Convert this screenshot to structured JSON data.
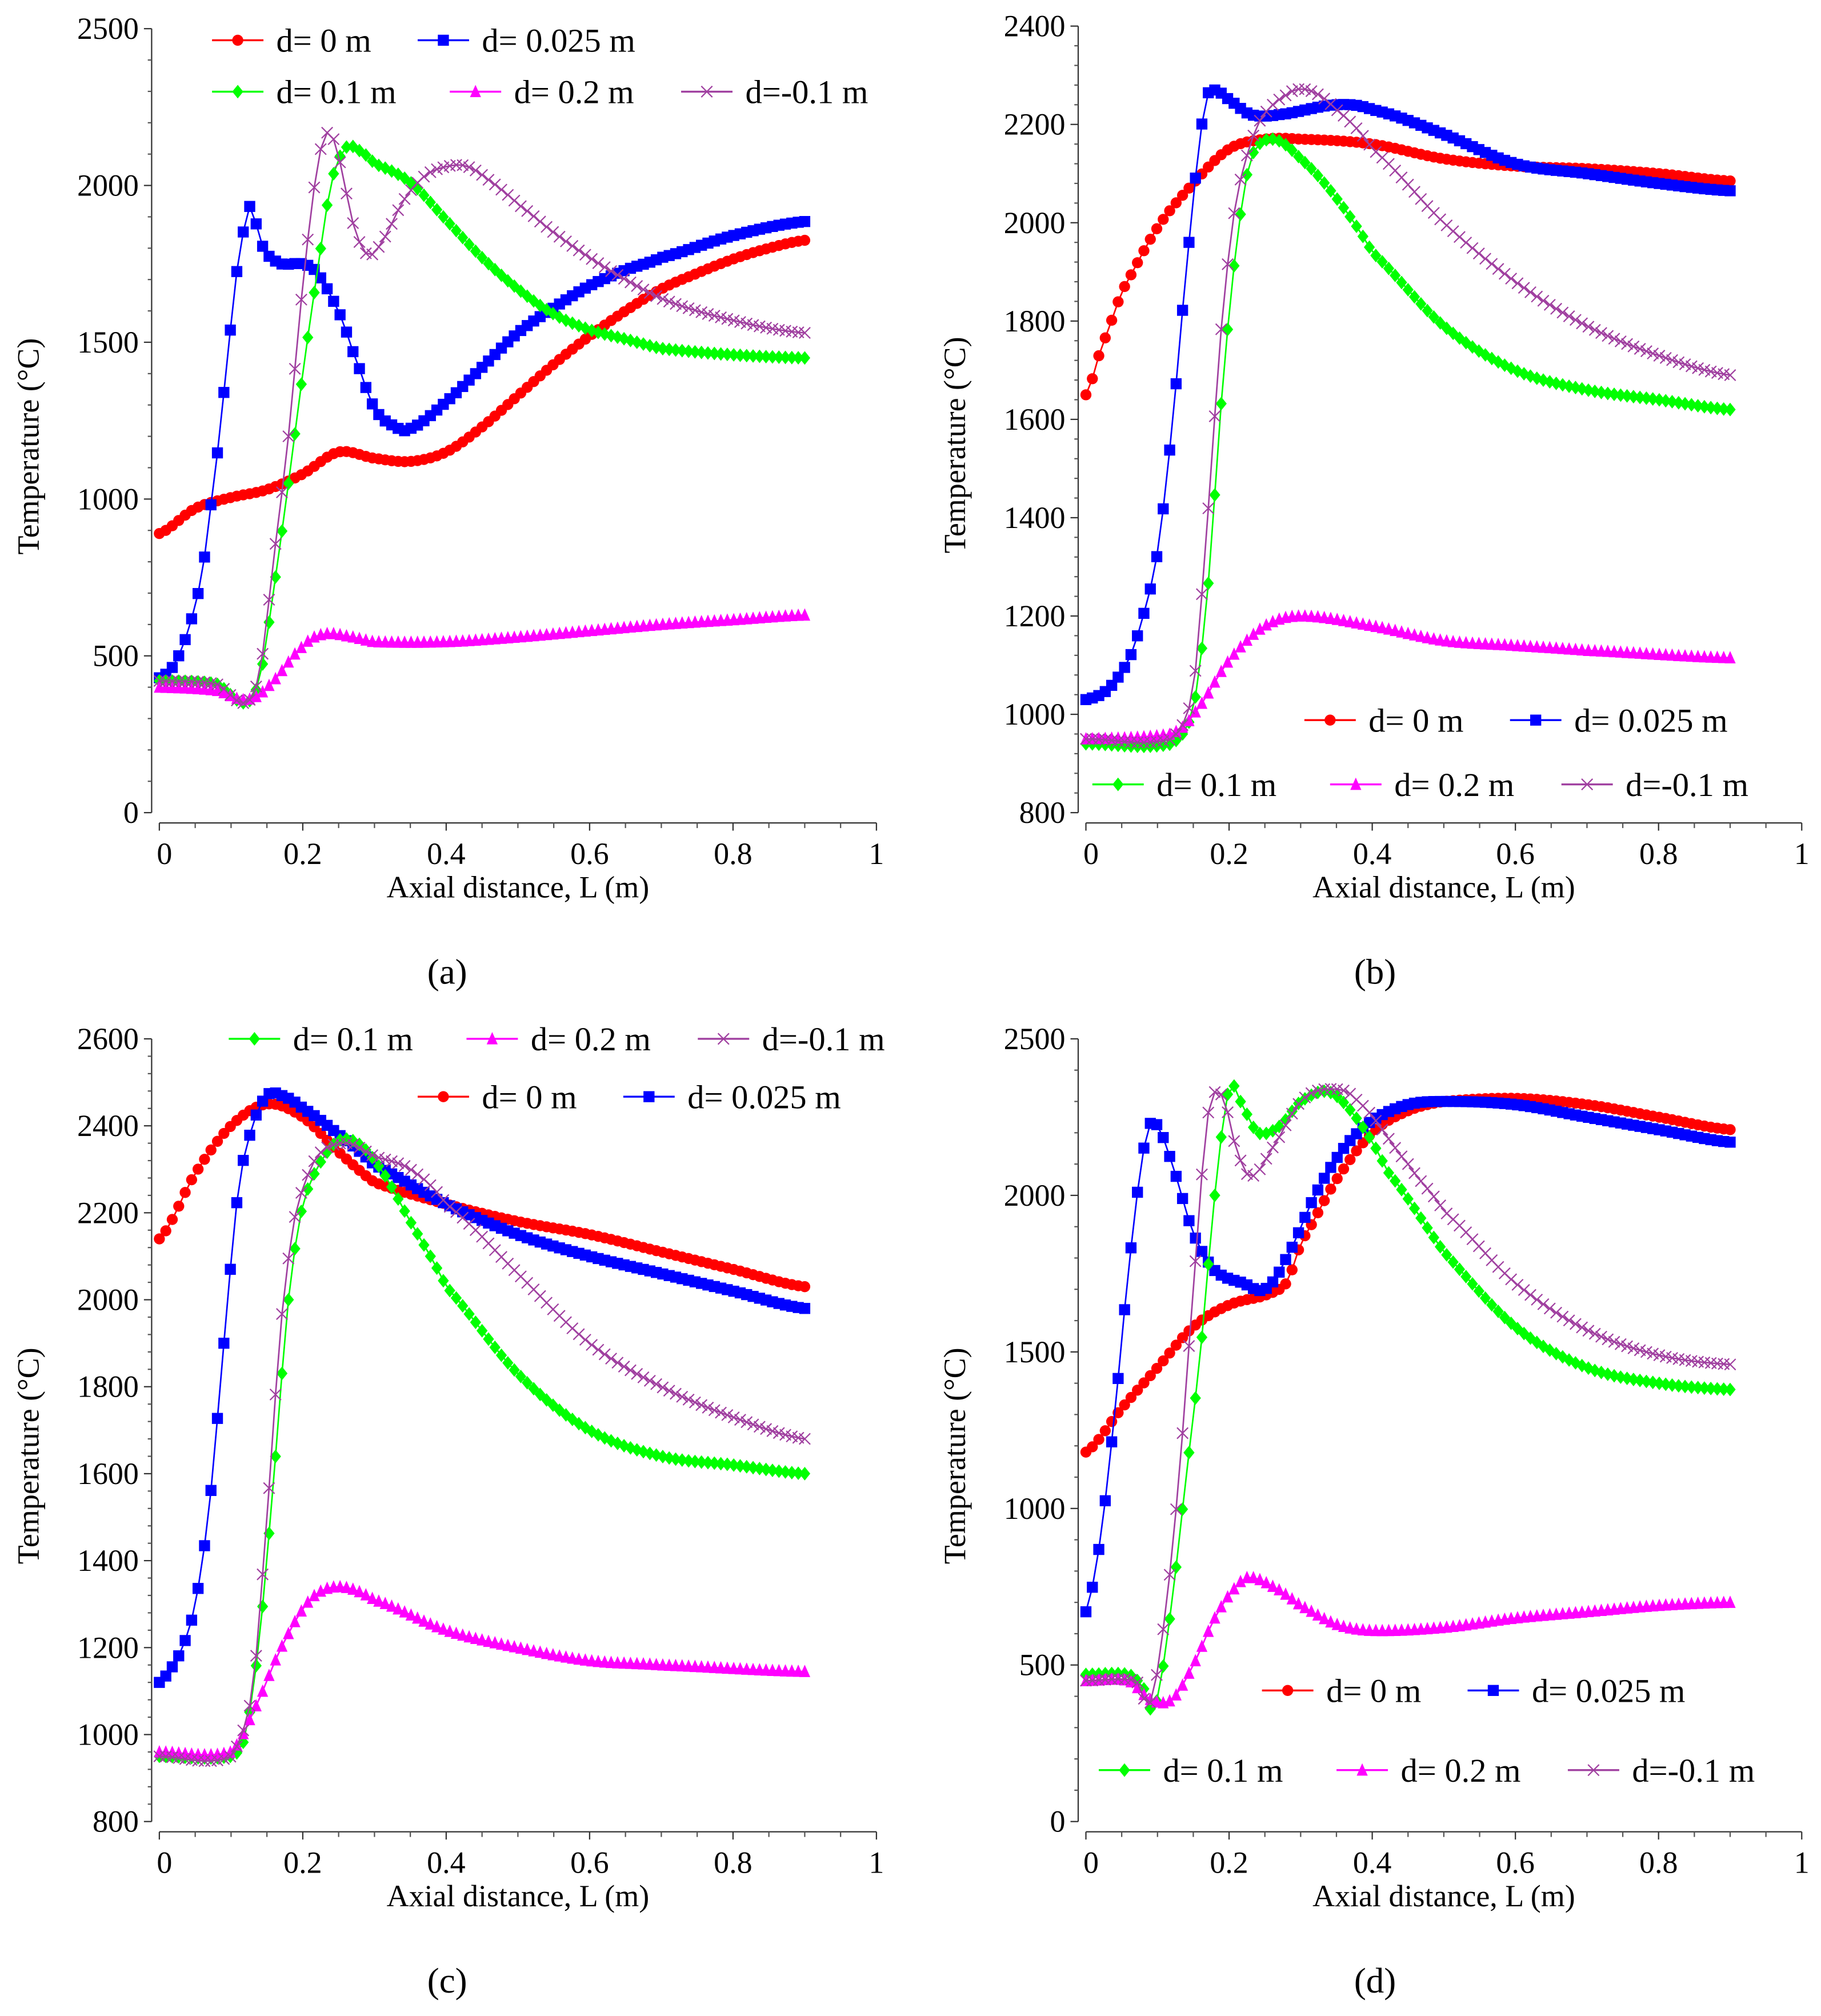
{
  "chart_data": [
    {
      "type": "line",
      "panel_label": "(a)",
      "xlabel": "Axial distance, L (m)",
      "ylabel": "Temperature (°C)",
      "xlim": [
        0,
        1
      ],
      "ylim": [
        0,
        2500
      ],
      "xticks": [
        0,
        0.2,
        0.4,
        0.6,
        0.8,
        1
      ],
      "xtick_labels": [
        "0",
        "0.2",
        "0.4",
        "0.6",
        "0.8",
        "1"
      ],
      "yticks": [
        0,
        500,
        1000,
        1500,
        2000,
        2500
      ],
      "ytick_labels": [
        "0",
        "500",
        "1000",
        "1500",
        "2000",
        "2500"
      ],
      "legend_placement": "top",
      "legend_rows": [
        [
          "d0",
          "d025"
        ],
        [
          "d01",
          "d02",
          "dm01"
        ]
      ],
      "series": [
        {
          "id": "d0",
          "name": "d= 0 m",
          "x": [
            0,
            0.05,
            0.1,
            0.15,
            0.2,
            0.25,
            0.3,
            0.35,
            0.4,
            0.45,
            0.5,
            0.55,
            0.6,
            0.65,
            0.7,
            0.75,
            0.8,
            0.85,
            0.9
          ],
          "y": [
            890,
            970,
            1005,
            1030,
            1080,
            1150,
            1130,
            1120,
            1150,
            1230,
            1330,
            1430,
            1520,
            1600,
            1670,
            1720,
            1765,
            1800,
            1825
          ]
        },
        {
          "id": "d025",
          "name": "d= 0.025 m",
          "x": [
            0,
            0.02,
            0.04,
            0.06,
            0.08,
            0.09,
            0.1,
            0.11,
            0.12,
            0.125,
            0.13,
            0.14,
            0.15,
            0.17,
            0.2,
            0.22,
            0.25,
            0.27,
            0.3,
            0.33,
            0.35,
            0.4,
            0.45,
            0.5,
            0.55,
            0.6,
            0.65,
            0.7,
            0.8,
            0.9
          ],
          "y": [
            430,
            470,
            580,
            770,
            1120,
            1340,
            1560,
            1760,
            1880,
            1930,
            1920,
            1830,
            1780,
            1750,
            1750,
            1720,
            1600,
            1470,
            1290,
            1230,
            1225,
            1310,
            1420,
            1530,
            1610,
            1680,
            1730,
            1770,
            1840,
            1885
          ]
        },
        {
          "id": "d01",
          "name": "d= 0.1 m",
          "x": [
            0,
            0.08,
            0.12,
            0.14,
            0.16,
            0.18,
            0.2,
            0.22,
            0.24,
            0.26,
            0.28,
            0.3,
            0.35,
            0.4,
            0.45,
            0.5,
            0.55,
            0.6,
            0.65,
            0.7,
            0.8,
            0.9
          ],
          "y": [
            420,
            410,
            350,
            430,
            720,
            1050,
            1400,
            1720,
            2010,
            2120,
            2110,
            2070,
            2010,
            1890,
            1770,
            1670,
            1590,
            1540,
            1510,
            1480,
            1460,
            1450
          ]
        },
        {
          "id": "d02",
          "name": "d= 0.2 m",
          "x": [
            0,
            0.08,
            0.12,
            0.15,
            0.2,
            0.23,
            0.27,
            0.3,
            0.4,
            0.5,
            0.6,
            0.7,
            0.8,
            0.9
          ],
          "y": [
            400,
            390,
            360,
            400,
            530,
            570,
            560,
            545,
            545,
            560,
            580,
            600,
            615,
            630
          ]
        },
        {
          "id": "dm01",
          "name": "d=-0.1 m",
          "x": [
            0,
            0.08,
            0.12,
            0.14,
            0.16,
            0.18,
            0.2,
            0.22,
            0.235,
            0.25,
            0.27,
            0.29,
            0.31,
            0.34,
            0.37,
            0.4,
            0.43,
            0.47,
            0.5,
            0.55,
            0.6,
            0.65,
            0.7,
            0.75,
            0.8,
            0.85,
            0.9
          ],
          "y": [
            420,
            410,
            350,
            450,
            820,
            1200,
            1680,
            2050,
            2170,
            2090,
            1880,
            1780,
            1820,
            1950,
            2030,
            2060,
            2060,
            2000,
            1940,
            1850,
            1770,
            1700,
            1640,
            1600,
            1570,
            1545,
            1530
          ]
        }
      ]
    },
    {
      "type": "line",
      "panel_label": "(b)",
      "xlabel": "Axial distance, L (m)",
      "ylabel": "Temperature (°C)",
      "xlim": [
        0,
        1
      ],
      "ylim": [
        800,
        2400
      ],
      "xticks": [
        0,
        0.2,
        0.4,
        0.6,
        0.8,
        1
      ],
      "xtick_labels": [
        "0",
        "0.2",
        "0.4",
        "0.6",
        "0.8",
        "1"
      ],
      "yticks": [
        800,
        1000,
        1200,
        1400,
        1600,
        1800,
        2000,
        2200,
        2400
      ],
      "ytick_labels": [
        "800",
        "1000",
        "1200",
        "1400",
        "1600",
        "1800",
        "2000",
        "2200",
        "2400"
      ],
      "legend_placement": "bottom-right",
      "legend_rows": [
        [
          "d0",
          "d025"
        ],
        [
          "d01",
          "d02",
          "dm01"
        ]
      ],
      "series": [
        {
          "id": "d0",
          "name": "d= 0 m",
          "x": [
            0,
            0.02,
            0.05,
            0.1,
            0.15,
            0.2,
            0.25,
            0.3,
            0.4,
            0.5,
            0.6,
            0.7,
            0.8,
            0.9
          ],
          "y": [
            1650,
            1740,
            1860,
            1990,
            2080,
            2150,
            2170,
            2170,
            2160,
            2130,
            2115,
            2110,
            2100,
            2085
          ]
        },
        {
          "id": "d025",
          "name": "d= 0.025 m",
          "x": [
            0,
            0.03,
            0.06,
            0.08,
            0.1,
            0.12,
            0.14,
            0.16,
            0.17,
            0.18,
            0.2,
            0.23,
            0.27,
            0.35,
            0.4,
            0.5,
            0.6,
            0.7,
            0.8,
            0.9
          ],
          "y": [
            1030,
            1050,
            1110,
            1200,
            1330,
            1580,
            1900,
            2170,
            2260,
            2270,
            2250,
            2220,
            2220,
            2240,
            2230,
            2180,
            2120,
            2100,
            2080,
            2065
          ]
        },
        {
          "id": "d01",
          "name": "d= 0.1 m",
          "x": [
            0,
            0.12,
            0.15,
            0.17,
            0.19,
            0.21,
            0.23,
            0.26,
            0.3,
            0.35,
            0.4,
            0.5,
            0.6,
            0.7,
            0.8,
            0.9
          ],
          "y": [
            940,
            940,
            1010,
            1250,
            1650,
            1950,
            2130,
            2170,
            2130,
            2050,
            1940,
            1790,
            1700,
            1660,
            1640,
            1620
          ]
        },
        {
          "id": "d02",
          "name": "d= 0.2 m",
          "x": [
            0,
            0.12,
            0.15,
            0.2,
            0.25,
            0.3,
            0.4,
            0.5,
            0.6,
            0.7,
            0.9
          ],
          "y": [
            950,
            960,
            1000,
            1110,
            1180,
            1200,
            1180,
            1150,
            1140,
            1130,
            1115
          ]
        },
        {
          "id": "dm01",
          "name": "d=-0.1 m",
          "x": [
            0,
            0.12,
            0.15,
            0.17,
            0.19,
            0.21,
            0.24,
            0.28,
            0.31,
            0.35,
            0.4,
            0.5,
            0.6,
            0.7,
            0.8,
            0.9
          ],
          "y": [
            950,
            950,
            1050,
            1400,
            1800,
            2050,
            2200,
            2260,
            2270,
            2230,
            2150,
            2000,
            1880,
            1790,
            1730,
            1690
          ]
        }
      ]
    },
    {
      "type": "line",
      "panel_label": "(c)",
      "xlabel": "Axial distance, L (m)",
      "ylabel": "Temperature (°C)",
      "xlim": [
        0,
        1
      ],
      "ylim": [
        800,
        2600
      ],
      "xticks": [
        0,
        0.2,
        0.4,
        0.6,
        0.8,
        1
      ],
      "xtick_labels": [
        "0",
        "0.2",
        "0.4",
        "0.6",
        "0.8",
        "1"
      ],
      "yticks": [
        800,
        1000,
        1200,
        1400,
        1600,
        1800,
        2000,
        2200,
        2400,
        2600
      ],
      "ytick_labels": [
        "800",
        "1000",
        "1200",
        "1400",
        "1600",
        "1800",
        "2000",
        "2200",
        "2400",
        "2600"
      ],
      "legend_placement": "top",
      "legend_rows": [
        [
          "d01",
          "d02",
          "dm01"
        ],
        [
          "d0",
          "d025"
        ]
      ],
      "series": [
        {
          "id": "d0",
          "name": "d= 0 m",
          "x": [
            0,
            0.05,
            0.1,
            0.15,
            0.2,
            0.25,
            0.3,
            0.4,
            0.5,
            0.6,
            0.7,
            0.8,
            0.9
          ],
          "y": [
            2140,
            2290,
            2400,
            2450,
            2420,
            2340,
            2270,
            2220,
            2180,
            2150,
            2110,
            2070,
            2030
          ]
        },
        {
          "id": "d025",
          "name": "d= 0.025 m",
          "x": [
            0,
            0.03,
            0.05,
            0.07,
            0.09,
            0.11,
            0.13,
            0.15,
            0.17,
            0.2,
            0.25,
            0.3,
            0.4,
            0.5,
            0.6,
            0.7,
            0.8,
            0.9
          ],
          "y": [
            1120,
            1190,
            1300,
            1530,
            1900,
            2250,
            2400,
            2470,
            2470,
            2440,
            2380,
            2310,
            2220,
            2150,
            2100,
            2060,
            2020,
            1980
          ]
        },
        {
          "id": "d01",
          "name": "d= 0.1 m",
          "x": [
            0,
            0.1,
            0.12,
            0.14,
            0.16,
            0.18,
            0.2,
            0.23,
            0.26,
            0.3,
            0.35,
            0.4,
            0.5,
            0.6,
            0.7,
            0.8,
            0.9
          ],
          "y": [
            950,
            950,
            1000,
            1230,
            1600,
            2000,
            2220,
            2330,
            2370,
            2320,
            2180,
            2030,
            1830,
            1700,
            1640,
            1620,
            1600
          ]
        },
        {
          "id": "d02",
          "name": "d= 0.2 m",
          "x": [
            0,
            0.1,
            0.13,
            0.17,
            0.21,
            0.25,
            0.3,
            0.4,
            0.5,
            0.6,
            0.7,
            0.9
          ],
          "y": [
            960,
            960,
            1050,
            1200,
            1310,
            1340,
            1310,
            1240,
            1200,
            1170,
            1160,
            1145
          ]
        },
        {
          "id": "dm01",
          "name": "d=-0.1 m",
          "x": [
            0,
            0.1,
            0.13,
            0.15,
            0.17,
            0.19,
            0.22,
            0.26,
            0.3,
            0.35,
            0.4,
            0.5,
            0.6,
            0.7,
            0.8,
            0.9
          ],
          "y": [
            950,
            950,
            1100,
            1500,
            1950,
            2200,
            2330,
            2360,
            2330,
            2300,
            2220,
            2060,
            1900,
            1800,
            1730,
            1680
          ]
        }
      ]
    },
    {
      "type": "line",
      "panel_label": "(d)",
      "xlabel": "Axial distance, L (m)",
      "ylabel": "Temperature (°C)",
      "xlim": [
        0,
        1
      ],
      "ylim": [
        0,
        2500
      ],
      "xticks": [
        0,
        0.2,
        0.4,
        0.6,
        0.8,
        1
      ],
      "xtick_labels": [
        "0",
        "0.2",
        "0.4",
        "0.6",
        "0.8",
        "1"
      ],
      "yticks": [
        0,
        500,
        1000,
        1500,
        2000,
        2500
      ],
      "ytick_labels": [
        "0",
        "500",
        "1000",
        "1500",
        "2000",
        "2500"
      ],
      "legend_placement": "bottom-right",
      "legend_rows": [
        [
          "d0",
          "d025"
        ],
        [
          "d01",
          "d02",
          "dm01"
        ]
      ],
      "series": [
        {
          "id": "d0",
          "name": "d= 0 m",
          "x": [
            0,
            0.05,
            0.1,
            0.15,
            0.2,
            0.25,
            0.28,
            0.3,
            0.35,
            0.4,
            0.45,
            0.5,
            0.6,
            0.7,
            0.8,
            0.9
          ],
          "y": [
            1180,
            1320,
            1450,
            1580,
            1650,
            1680,
            1720,
            1850,
            2050,
            2200,
            2270,
            2300,
            2310,
            2290,
            2250,
            2210
          ]
        },
        {
          "id": "d025",
          "name": "d= 0.025 m",
          "x": [
            0,
            0.02,
            0.04,
            0.06,
            0.08,
            0.09,
            0.1,
            0.12,
            0.15,
            0.18,
            0.22,
            0.25,
            0.28,
            0.32,
            0.36,
            0.4,
            0.45,
            0.5,
            0.6,
            0.7,
            0.8,
            0.9
          ],
          "y": [
            670,
            900,
            1300,
            1770,
            2130,
            2230,
            2220,
            2100,
            1880,
            1760,
            1720,
            1700,
            1800,
            2000,
            2150,
            2240,
            2290,
            2300,
            2290,
            2250,
            2210,
            2170
          ]
        },
        {
          "id": "d01",
          "name": "d= 0.1 m",
          "x": [
            0,
            0.06,
            0.08,
            0.09,
            0.1,
            0.12,
            0.14,
            0.16,
            0.18,
            0.2,
            0.22,
            0.24,
            0.27,
            0.3,
            0.34,
            0.38,
            0.42,
            0.5,
            0.6,
            0.7,
            0.8,
            0.9
          ],
          "y": [
            470,
            470,
            430,
            360,
            400,
            700,
            1100,
            1500,
            2000,
            2340,
            2280,
            2200,
            2220,
            2300,
            2330,
            2240,
            2080,
            1820,
            1580,
            1450,
            1400,
            1380
          ]
        },
        {
          "id": "d02",
          "name": "d= 0.2 m",
          "x": [
            0,
            0.06,
            0.09,
            0.12,
            0.15,
            0.18,
            0.21,
            0.23,
            0.27,
            0.3,
            0.35,
            0.4,
            0.5,
            0.6,
            0.7,
            0.8,
            0.9
          ],
          "y": [
            450,
            450,
            390,
            390,
            500,
            650,
            750,
            780,
            740,
            690,
            630,
            610,
            620,
            650,
            670,
            690,
            700
          ]
        },
        {
          "id": "dm01",
          "name": "d=-0.1 m",
          "x": [
            0,
            0.07,
            0.09,
            0.11,
            0.13,
            0.15,
            0.17,
            0.19,
            0.21,
            0.23,
            0.26,
            0.3,
            0.34,
            0.38,
            0.45,
            0.5,
            0.6,
            0.7,
            0.8,
            0.9
          ],
          "y": [
            450,
            450,
            380,
            650,
            1100,
            1700,
            2250,
            2320,
            2150,
            2060,
            2150,
            2300,
            2340,
            2300,
            2100,
            1950,
            1720,
            1570,
            1490,
            1460
          ]
        }
      ]
    }
  ],
  "series_style": {
    "d0": {
      "color": "#ff0000",
      "marker": "circle"
    },
    "d025": {
      "color": "#0000ff",
      "marker": "square"
    },
    "d01": {
      "color": "#00ff00",
      "marker": "diamond"
    },
    "d02": {
      "color": "#ff00ff",
      "marker": "triangle"
    },
    "dm01": {
      "color": "#a040a0",
      "marker": "cross"
    }
  }
}
